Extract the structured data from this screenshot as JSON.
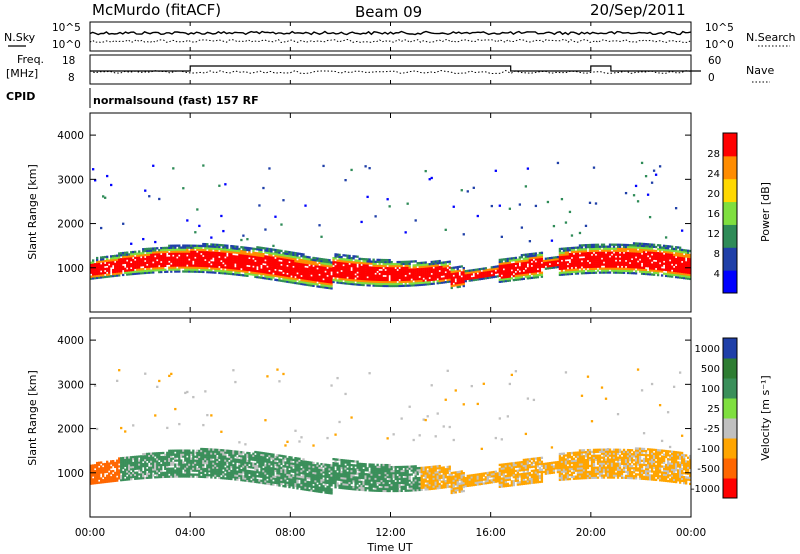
{
  "header": {
    "station": "McMurdo (fitACF)",
    "beam": "Beam 09",
    "date": "20/Sep/2011"
  },
  "chart_data": [
    {
      "type": "line",
      "name": "noise-panel",
      "left_label": "N.Sky",
      "right_label": "N.Search",
      "yticks_left": [
        "10^5",
        "10^0"
      ],
      "yticks_right": [
        "10^5",
        "10^0"
      ]
    },
    {
      "type": "line",
      "name": "frequency-panel",
      "left_label_top": "Freq.",
      "left_label_bottom": "[MHz]",
      "right_label": "Nave",
      "yticks_left": [
        18,
        8
      ],
      "yticks_right": [
        60,
        0
      ],
      "cpid_label": "CPID",
      "program": "normalsound (fast) 157 RF"
    },
    {
      "type": "heatmap",
      "name": "power-panel",
      "ylabel": "Slant Range [km]",
      "yticks": [
        1000,
        2000,
        3000,
        4000
      ],
      "ylim": [
        0,
        4500
      ],
      "colorbar_label": "Power [dB]",
      "colorbar_ticks": [
        "28",
        "24",
        "20",
        "16",
        "12",
        "8",
        "4"
      ],
      "colorbar_colors": [
        "#0000ff",
        "#1f3fa8",
        "#2e8b57",
        "#7fdf3f",
        "#ffd800",
        "#ff8c00",
        "#ff0000"
      ]
    },
    {
      "type": "heatmap",
      "name": "velocity-panel",
      "ylabel": "Slant Range [km]",
      "yticks": [
        1000,
        2000,
        3000,
        4000
      ],
      "ylim": [
        0,
        4500
      ],
      "colorbar_label": "Velocity [m s⁻¹]",
      "colorbar_ticks": [
        "1000",
        "500",
        "100",
        "25",
        "-25",
        "-100",
        "-500",
        "-1000"
      ],
      "colorbar_colors": [
        "#1f3fa8",
        "#2e7d32",
        "#3a8f5a",
        "#7fdf3f",
        "#c0c0c0",
        "#ffa500",
        "#ff6600",
        "#ff0000"
      ]
    }
  ],
  "xaxis": {
    "label": "Time UT",
    "ticks": [
      "00:00",
      "04:00",
      "08:00",
      "12:00",
      "16:00",
      "20:00",
      "00:00"
    ]
  }
}
